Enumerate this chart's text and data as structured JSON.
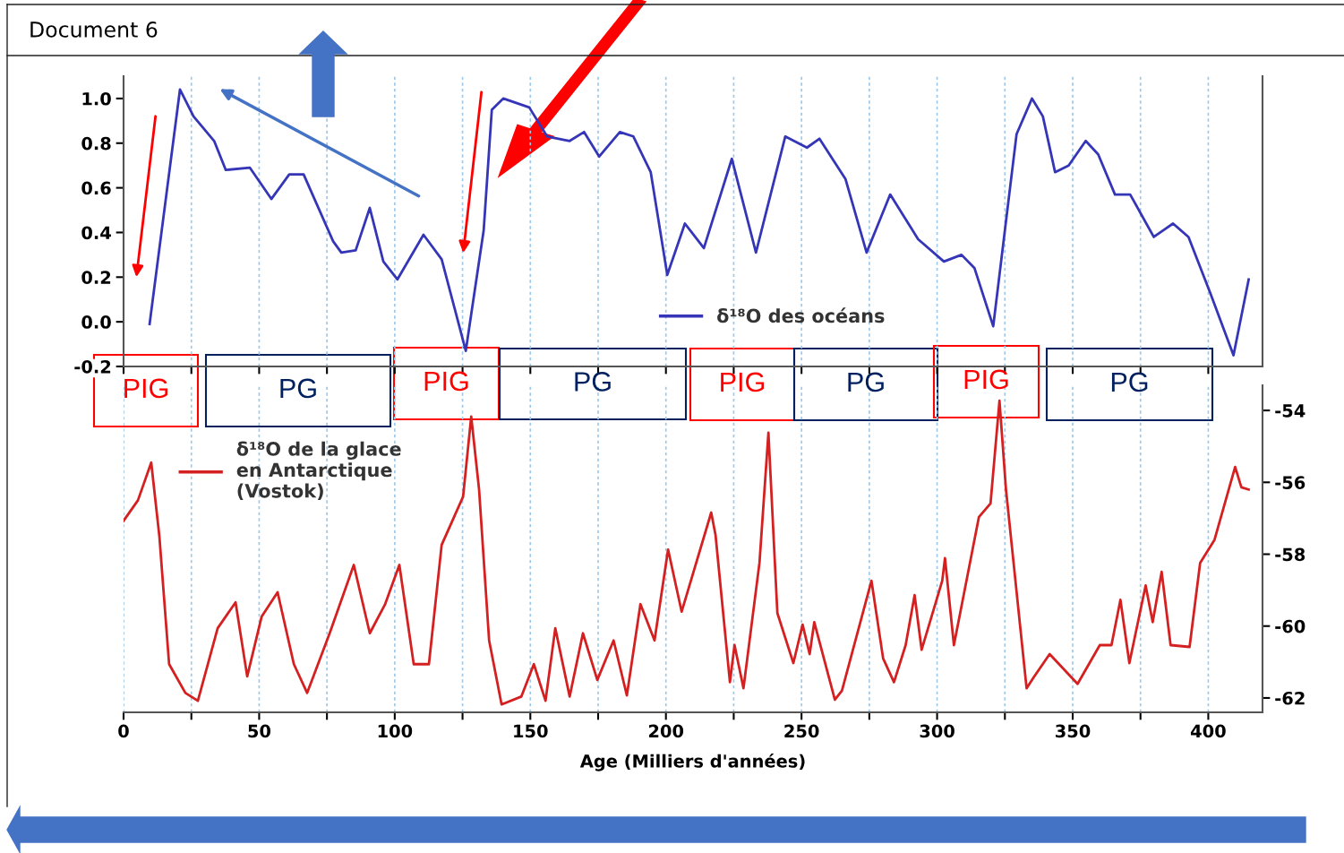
{
  "chart_data": [
    {
      "type": "line",
      "title": "Document 6",
      "annotations": [
        "PIG",
        "PG",
        "PIG",
        "PG",
        "PIG",
        "PG",
        "PIG",
        "PG"
      ],
      "series": [
        {
          "name": "δ¹⁸O des océans",
          "color": "#3535b8",
          "x": [
            9.6,
            20.8,
            25.8,
            33.4,
            37.7,
            46.6,
            54.5,
            61.1,
            66.4,
            77.3,
            80.3,
            85.6,
            90.8,
            95.8,
            101,
            110.6,
            117.3,
            126.2,
            132.8,
            135.8,
            140,
            149.6,
            156.2,
            164.5,
            169.8,
            175.4,
            183,
            188,
            194.4,
            200.5,
            207,
            214,
            224.3,
            233.2,
            244,
            252,
            256.6,
            266.2,
            274,
            282.7,
            293,
            302.5,
            309,
            313.8,
            320.7,
            329.3,
            335,
            339,
            343.5,
            348.5,
            354.8,
            359.4,
            365.6,
            371.2,
            379.9,
            387,
            392.7,
            400.7,
            409.3,
            414.9
          ],
          "values": [
            -0.01,
            1.04,
            0.92,
            0.81,
            0.68,
            0.69,
            0.55,
            0.66,
            0.66,
            0.36,
            0.31,
            0.32,
            0.51,
            0.27,
            0.19,
            0.39,
            0.28,
            -0.13,
            0.41,
            0.95,
            1.0,
            0.96,
            0.83,
            0.81,
            0.85,
            0.74,
            0.85,
            0.83,
            0.67,
            0.21,
            0.44,
            0.33,
            0.73,
            0.31,
            0.83,
            0.78,
            0.82,
            0.64,
            0.31,
            0.57,
            0.37,
            0.27,
            0.3,
            0.24,
            -0.02,
            0.84,
            1.0,
            0.92,
            0.67,
            0.7,
            0.81,
            0.75,
            0.57,
            0.57,
            0.38,
            0.44,
            0.38,
            0.13,
            -0.15,
            0.19
          ]
        }
      ],
      "xlim": [
        0,
        420
      ],
      "xticks": [
        0,
        {
          "value": 25,
          "label": null
        },
        50,
        {
          "value": 75,
          "label": null
        },
        100,
        {
          "value": 125,
          "label": null
        },
        150,
        {
          "value": 175,
          "label": null
        },
        200,
        {
          "value": 225,
          "label": null
        },
        250,
        {
          "value": 275,
          "label": null
        },
        300,
        {
          "value": 325,
          "label": null
        },
        350,
        {
          "value": 375,
          "label": null
        },
        400
      ],
      "ylim": [
        -0.2,
        1.1
      ],
      "yticks": [
        -0.2,
        {
          "value": 0,
          "label": "0.0"
        },
        0.2,
        0.4,
        0.6,
        0.8,
        {
          "value": 1,
          "label": "1.0"
        }
      ],
      "grid": "x",
      "legend": "bottom",
      "tick_labels": "y"
    },
    {
      "type": "line",
      "xlabel": "Age (Milliers d'années)",
      "series": [
        {
          "name": "δ¹⁸O de la glace\nen Antarctique\n(Vostok)",
          "color": "#d42020",
          "axis": "y2",
          "x": [
            0,
            5.3,
            10.2,
            13.2,
            16.8,
            22.8,
            27.4,
            34.7,
            41.3,
            45.6,
            50.9,
            56.8,
            62.8,
            67.7,
            76,
            84.9,
            90.8,
            96.4,
            101.7,
            107,
            112.6,
            117.3,
            125.2,
            128.2,
            131.1,
            134.8,
            139.4,
            146.7,
            151.3,
            155.6,
            159.2,
            164.5,
            169.4,
            174.7,
            180.7,
            185.6,
            190.6,
            195.8,
            200.8,
            205.8,
            216.7,
            218.3,
            223.6,
            225.3,
            228.6,
            234.5,
            237.8,
            241.1,
            247,
            250.4,
            253,
            254.7,
            262.3,
            264.9,
            275.8,
            280.1,
            284.1,
            288.4,
            291.7,
            294.3,
            301.9,
            302.9,
            306.2,
            315.4,
            319.7,
            323,
            325.4,
            333,
            335.6,
            341.5,
            351.8,
            360,
            364.3,
            367.6,
            370.9,
            376.9,
            379.5,
            382.8,
            386.1,
            393.1,
            397,
            402.3,
            409.9,
            412.2,
            414.9
          ],
          "values": [
            -57.07,
            -56.5,
            -55.45,
            -57.5,
            -61.06,
            -61.86,
            -62.08,
            -60.06,
            -59.34,
            -61.4,
            -59.74,
            -59.06,
            -61.06,
            -61.86,
            -60.2,
            -58.3,
            -60.2,
            -59.4,
            -58.3,
            -61.06,
            -61.06,
            -57.74,
            -56.4,
            -54.17,
            -56.2,
            -60.4,
            -62.18,
            -61.96,
            -61.06,
            -62.08,
            -60.06,
            -61.96,
            -60.2,
            -61.5,
            -60.4,
            -61.93,
            -59.39,
            -60.4,
            -57.87,
            -59.6,
            -56.84,
            -57.47,
            -61.56,
            -60.53,
            -61.73,
            -58.24,
            -54.62,
            -59.64,
            -61.03,
            -59.96,
            -60.78,
            -59.89,
            -62.05,
            -61.8,
            -58.74,
            -60.9,
            -61.56,
            -60.53,
            -59.14,
            -60.66,
            -58.74,
            -58.11,
            -60.53,
            -56.97,
            -56.59,
            -53.73,
            -56.2,
            -61.73,
            -61.43,
            -60.78,
            -61.61,
            -60.53,
            -60.53,
            -59.27,
            -61.03,
            -58.87,
            -59.89,
            -58.49,
            -60.53,
            -60.58,
            -58.24,
            -57.6,
            -55.57,
            -56.14,
            -56.2
          ]
        }
      ],
      "xlim": [
        0,
        420
      ],
      "xticks": [
        0,
        {
          "value": 25,
          "label": null
        },
        50,
        {
          "value": 75,
          "label": null
        },
        100,
        {
          "value": 125,
          "label": null
        },
        150,
        {
          "value": 175,
          "label": null
        },
        200,
        {
          "value": 225,
          "label": null
        },
        250,
        {
          "value": 275,
          "label": null
        },
        300,
        {
          "value": 325,
          "label": null
        },
        350,
        {
          "value": 375,
          "label": null
        },
        400
      ],
      "y2lim": [
        -62.4,
        -53.3
      ],
      "y2ticks": [
        -62,
        -60,
        -58,
        -56,
        -54
      ],
      "grid": "x",
      "legend": "top left"
    }
  ]
}
